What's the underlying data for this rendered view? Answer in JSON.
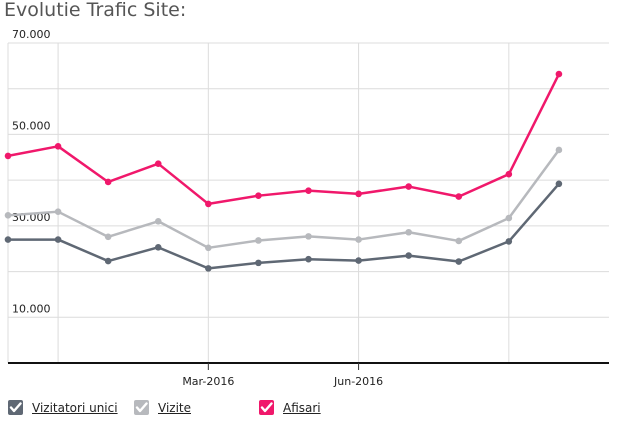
{
  "header": {
    "title": "Evolutie Trafic Site:"
  },
  "chart_data": {
    "type": "line",
    "title": "Evolutie Trafic Site:",
    "xlabel": "",
    "ylabel": "",
    "ylim": [
      0,
      70000
    ],
    "y_tick_labels": [
      "70.000",
      "50.000",
      "30.000",
      "10.000"
    ],
    "y_tick_values": [
      70000,
      50000,
      30000,
      10000
    ],
    "x_tick_labels": [
      "Mar-2016",
      "Jun-2016"
    ],
    "x_tick_indices": [
      3,
      6
    ],
    "grid": true,
    "legend_placement": "bottom",
    "series": [
      {
        "name": "Vizitatori unici",
        "color": "#5f6874",
        "values": [
          27000,
          27000,
          22300,
          25300,
          20700,
          21900,
          22700,
          22400,
          23500,
          22200,
          26600,
          39200
        ]
      },
      {
        "name": "Vizite",
        "color": "#b7b9bd",
        "values": [
          32300,
          33100,
          27600,
          31000,
          25200,
          26800,
          27700,
          27000,
          28600,
          26700,
          31700,
          46600
        ]
      },
      {
        "name": "Afisari",
        "color": "#f0186b",
        "values": [
          45300,
          47400,
          39600,
          43600,
          34800,
          36600,
          37700,
          37000,
          38600,
          36400,
          41300,
          63200
        ]
      }
    ]
  },
  "legend": {
    "items": [
      {
        "label": "Vizitatori unici",
        "color": "#5f6874"
      },
      {
        "label": "Vizite",
        "color": "#b7b9bd"
      },
      {
        "label": "Afisari",
        "color": "#f0186b"
      }
    ]
  }
}
